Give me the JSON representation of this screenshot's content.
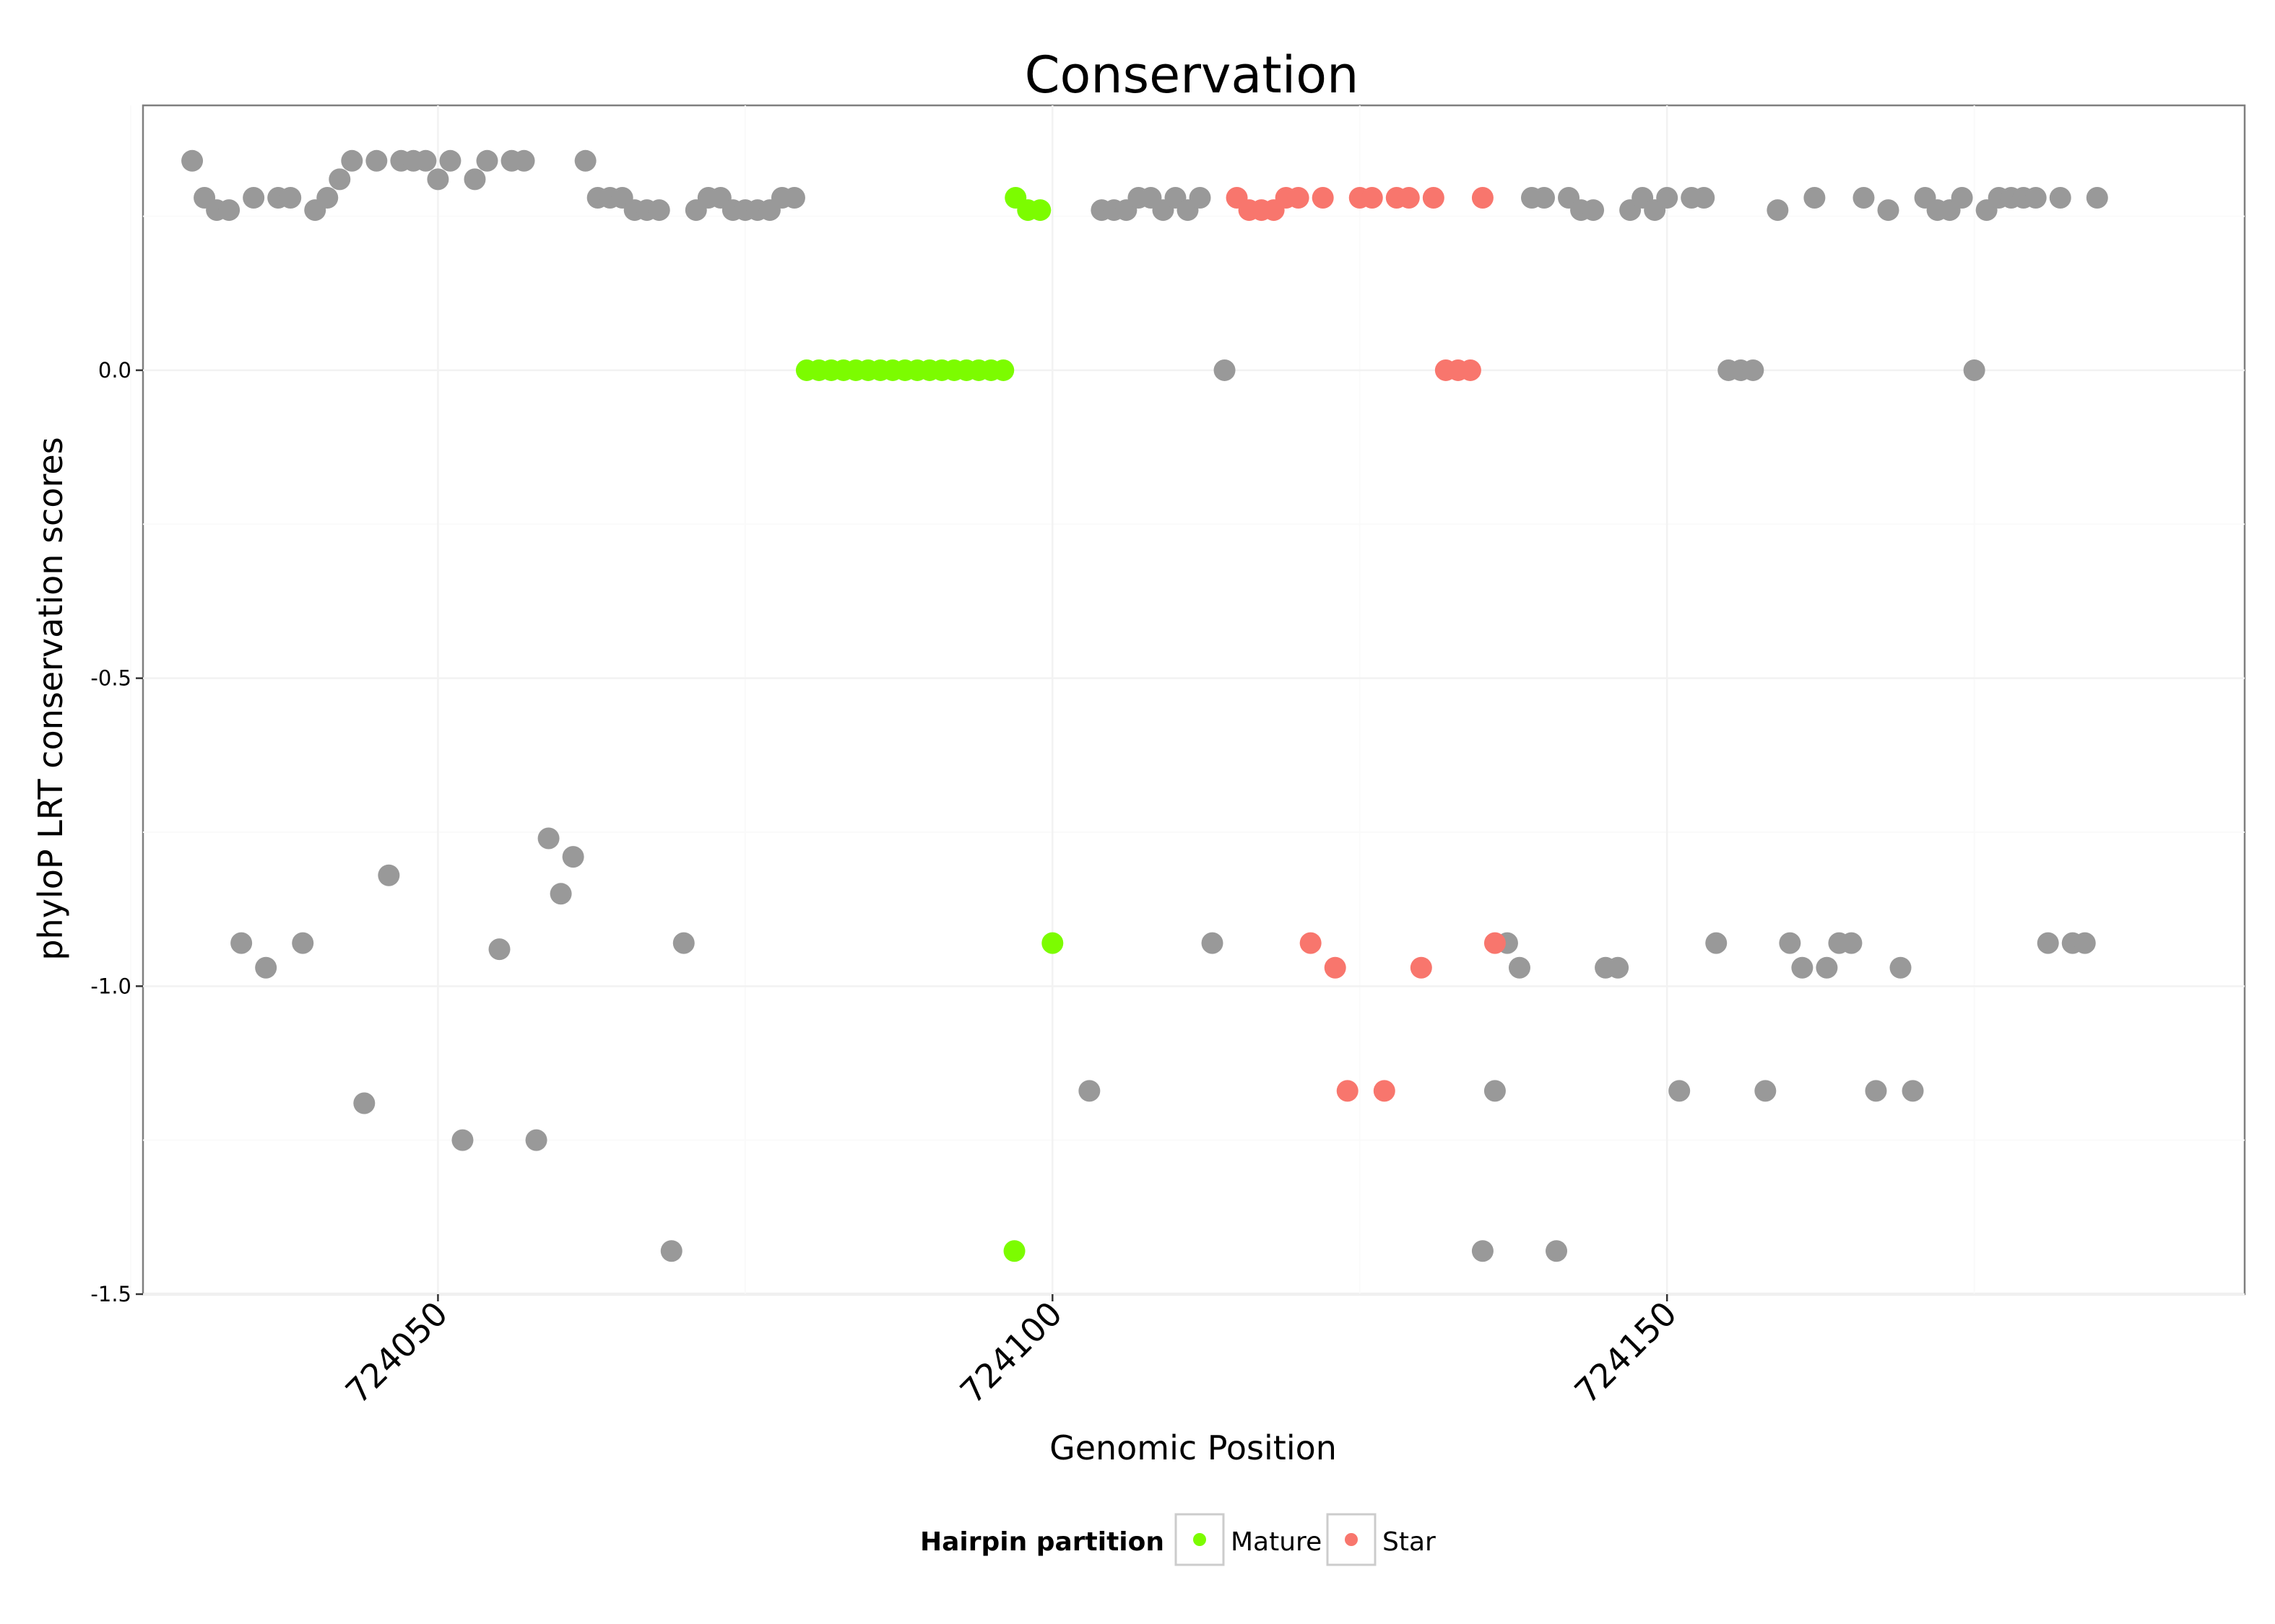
{
  "chart_data": {
    "type": "scatter",
    "title": "Conservation",
    "xlabel": "Genomic Position",
    "ylabel": "phyloP LRT conservation scores",
    "xlim": [
      724026,
      724197
    ],
    "ylim": [
      -1.5,
      0.43
    ],
    "x_major_ticks": [
      724050,
      724100,
      724150
    ],
    "x_tick_labels": [
      "724050",
      "724100",
      "724150"
    ],
    "x_minor_ticks": [
      724025,
      724075,
      724125,
      724175
    ],
    "y_major_ticks": [
      -1.5,
      -1.0,
      -0.5,
      0.0
    ],
    "y_tick_labels": [
      "-1.5",
      "-1.0",
      "-0.5",
      "0.0"
    ],
    "y_minor_ticks": [
      -1.25,
      -0.75,
      -0.25,
      0.25
    ],
    "legend": {
      "title": "Hairpin partition",
      "position": "bottom",
      "entries": [
        {
          "label": "Mature",
          "color": "#7cfc00"
        },
        {
          "label": "Star",
          "color": "#f8766d"
        }
      ]
    },
    "colors": {
      "none": "#999999",
      "Mature": "#7cfc00",
      "Star": "#f8766d"
    },
    "series": [
      {
        "name": "Other",
        "color": "#999999",
        "points": [
          [
            724030,
            0.34
          ],
          [
            724031,
            0.28
          ],
          [
            724032,
            0.26
          ],
          [
            724033,
            0.26
          ],
          [
            724034,
            -0.93
          ],
          [
            724035,
            0.28
          ],
          [
            724036,
            -0.97
          ],
          [
            724037,
            0.28
          ],
          [
            724038,
            0.28
          ],
          [
            724039,
            -0.93
          ],
          [
            724040,
            0.26
          ],
          [
            724041,
            0.28
          ],
          [
            724042,
            0.31
          ],
          [
            724043,
            0.34
          ],
          [
            724044,
            -1.19
          ],
          [
            724045,
            0.34
          ],
          [
            724046,
            -0.82
          ],
          [
            724047,
            0.34
          ],
          [
            724048,
            0.34
          ],
          [
            724049,
            0.34
          ],
          [
            724050,
            0.31
          ],
          [
            724051,
            0.34
          ],
          [
            724052,
            -1.25
          ],
          [
            724053,
            0.31
          ],
          [
            724054,
            0.34
          ],
          [
            724055,
            -0.94
          ],
          [
            724056,
            0.34
          ],
          [
            724057,
            0.34
          ],
          [
            724058,
            -1.25
          ],
          [
            724059,
            -0.76
          ],
          [
            724060,
            -0.85
          ],
          [
            724061,
            -0.79
          ],
          [
            724062,
            0.34
          ],
          [
            724063,
            0.28
          ],
          [
            724064,
            0.28
          ],
          [
            724065,
            0.28
          ],
          [
            724066,
            0.26
          ],
          [
            724067,
            0.26
          ],
          [
            724068,
            0.26
          ],
          [
            724069,
            -1.43
          ],
          [
            724070,
            -0.93
          ],
          [
            724071,
            0.26
          ],
          [
            724072,
            0.28
          ],
          [
            724073,
            0.28
          ],
          [
            724074,
            0.26
          ],
          [
            724075,
            0.26
          ],
          [
            724076,
            0.26
          ],
          [
            724077,
            0.26
          ],
          [
            724078,
            0.28
          ],
          [
            724079,
            0.28
          ],
          [
            724103,
            -1.17
          ],
          [
            724104,
            0.26
          ],
          [
            724105,
            0.26
          ],
          [
            724106,
            0.26
          ],
          [
            724107,
            0.28
          ],
          [
            724108,
            0.28
          ],
          [
            724109,
            0.26
          ],
          [
            724110,
            0.28
          ],
          [
            724111,
            0.26
          ],
          [
            724112,
            0.28
          ],
          [
            724113,
            -0.93
          ],
          [
            724114,
            0.0
          ],
          [
            724135,
            -1.43
          ],
          [
            724136,
            -1.17
          ],
          [
            724137,
            -0.93
          ],
          [
            724138,
            -0.97
          ],
          [
            724139,
            0.28
          ],
          [
            724140,
            0.28
          ],
          [
            724141,
            -1.43
          ],
          [
            724142,
            0.28
          ],
          [
            724143,
            0.26
          ],
          [
            724144,
            0.26
          ],
          [
            724145,
            -0.97
          ],
          [
            724146,
            -0.97
          ],
          [
            724147,
            0.26
          ],
          [
            724148,
            0.28
          ],
          [
            724149,
            0.26
          ],
          [
            724150,
            0.28
          ],
          [
            724151,
            -1.17
          ],
          [
            724152,
            0.28
          ],
          [
            724153,
            0.28
          ],
          [
            724154,
            -0.93
          ],
          [
            724155,
            0.0
          ],
          [
            724156,
            0.0
          ],
          [
            724157,
            0.0
          ],
          [
            724158,
            -1.17
          ],
          [
            724159,
            0.26
          ],
          [
            724160,
            -0.93
          ],
          [
            724161,
            -0.97
          ],
          [
            724162,
            0.28
          ],
          [
            724163,
            -0.97
          ],
          [
            724164,
            -0.93
          ],
          [
            724165,
            -0.93
          ],
          [
            724166,
            0.28
          ],
          [
            724167,
            -1.17
          ],
          [
            724168,
            0.26
          ],
          [
            724169,
            -0.97
          ],
          [
            724170,
            -1.17
          ],
          [
            724171,
            0.28
          ],
          [
            724172,
            0.26
          ],
          [
            724173,
            0.26
          ],
          [
            724174,
            0.28
          ],
          [
            724175,
            0.0
          ],
          [
            724176,
            0.26
          ],
          [
            724177,
            0.28
          ],
          [
            724178,
            0.28
          ],
          [
            724179,
            0.28
          ],
          [
            724180,
            0.28
          ],
          [
            724181,
            -0.93
          ],
          [
            724182,
            0.28
          ],
          [
            724183,
            -0.93
          ],
          [
            724184,
            -0.93
          ],
          [
            724185,
            0.28
          ]
        ]
      },
      {
        "name": "Mature",
        "color": "#7cfc00",
        "points": [
          [
            724080,
            0.0
          ],
          [
            724081,
            0.0
          ],
          [
            724082,
            0.0
          ],
          [
            724083,
            0.0
          ],
          [
            724084,
            0.0
          ],
          [
            724085,
            0.0
          ],
          [
            724086,
            0.0
          ],
          [
            724087,
            0.0
          ],
          [
            724088,
            0.0
          ],
          [
            724089,
            0.0
          ],
          [
            724090,
            0.0
          ],
          [
            724091,
            0.0
          ],
          [
            724092,
            0.0
          ],
          [
            724093,
            0.0
          ],
          [
            724094,
            0.0
          ],
          [
            724095,
            0.0
          ],
          [
            724096,
            0.0
          ],
          [
            724096.9,
            -1.43
          ],
          [
            724097,
            0.28
          ],
          [
            724098,
            0.26
          ],
          [
            724099,
            0.26
          ],
          [
            724100,
            -0.93
          ]
        ]
      },
      {
        "name": "Star",
        "color": "#f8766d",
        "points": [
          [
            724115,
            0.28
          ],
          [
            724116,
            0.26
          ],
          [
            724117,
            0.26
          ],
          [
            724118,
            0.26
          ],
          [
            724119,
            0.28
          ],
          [
            724120,
            0.28
          ],
          [
            724121,
            -0.93
          ],
          [
            724122,
            0.28
          ],
          [
            724123,
            -0.97
          ],
          [
            724124,
            -1.17
          ],
          [
            724125,
            0.28
          ],
          [
            724126,
            0.28
          ],
          [
            724127,
            -1.17
          ],
          [
            724128,
            0.28
          ],
          [
            724129,
            0.28
          ],
          [
            724130,
            -0.97
          ],
          [
            724131,
            0.28
          ],
          [
            724132,
            0.0
          ],
          [
            724133,
            0.0
          ],
          [
            724134,
            0.0
          ],
          [
            724135,
            0.28
          ],
          [
            724136,
            -0.93
          ]
        ]
      }
    ]
  }
}
